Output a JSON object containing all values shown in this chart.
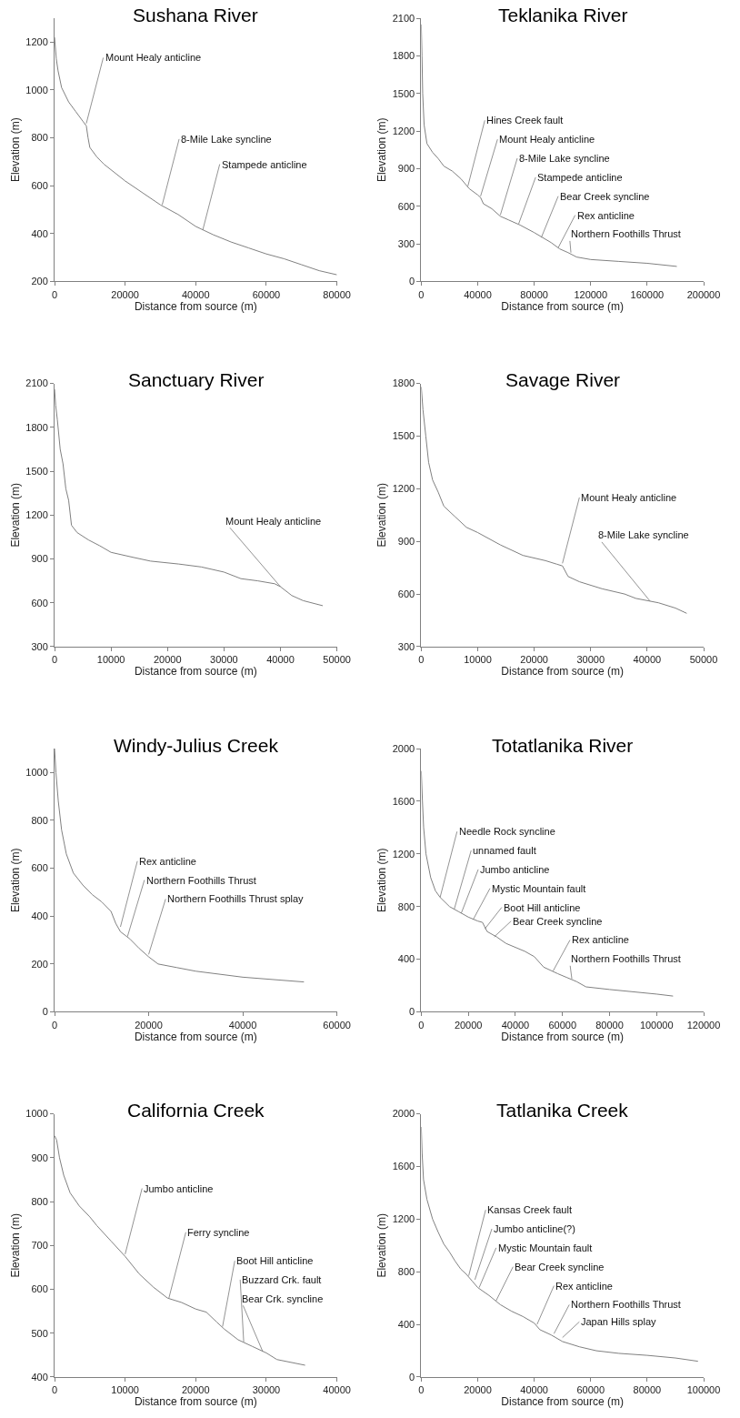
{
  "chart_data": [
    {
      "type": "line",
      "title": "Sushana River",
      "xlabel": "Distance from source (m)",
      "ylabel": "Elevation (m)",
      "xlim": [
        0,
        80000
      ],
      "xticks": [
        0,
        20000,
        40000,
        60000,
        80000
      ],
      "ylim": [
        200,
        1300
      ],
      "yticks": [
        200,
        400,
        600,
        800,
        1000,
        1200
      ],
      "marker": "none",
      "line_style": "solid",
      "x": [
        0,
        500,
        1000,
        2000,
        4000,
        6000,
        8000,
        9000,
        9500,
        10000,
        12000,
        14000,
        20000,
        25000,
        30000,
        35000,
        40000,
        45000,
        50000,
        55000,
        60000,
        65000,
        70000,
        75000,
        80000
      ],
      "series": [
        {
          "color": "#808080",
          "values": [
            1220,
            1130,
            1080,
            1010,
            950,
            910,
            870,
            850,
            800,
            760,
            720,
            690,
            620,
            570,
            520,
            480,
            430,
            395,
            365,
            340,
            315,
            295,
            270,
            245,
            228
          ]
        }
      ],
      "annotations": [
        {
          "text": "Mount Healy anticline",
          "x": 9000,
          "y": 860
        },
        {
          "text": "8-Mile Lake syncline",
          "x": 30500,
          "y": 520
        },
        {
          "text": "Stampede anticline",
          "x": 42000,
          "y": 415
        }
      ]
    },
    {
      "type": "line",
      "title": "Teklanika River",
      "xlabel": "Distance from source (m)",
      "ylabel": "Elevation (m)",
      "xlim": [
        0,
        200000
      ],
      "xticks": [
        0,
        40000,
        80000,
        120000,
        160000,
        200000
      ],
      "ylim": [
        0,
        2100
      ],
      "yticks": [
        0,
        300,
        600,
        900,
        1200,
        1500,
        1800,
        2100
      ],
      "marker": "none",
      "line_style": "solid",
      "x": [
        0,
        500,
        1000,
        2000,
        4000,
        8000,
        12000,
        16000,
        22000,
        28000,
        34000,
        40000,
        42000,
        44000,
        50000,
        56000,
        62000,
        70000,
        80000,
        86000,
        92000,
        98000,
        104000,
        110000,
        120000,
        140000,
        160000,
        181000
      ],
      "series": [
        {
          "color": "#808080",
          "values": [
            2050,
            1800,
            1500,
            1250,
            1100,
            1030,
            980,
            920,
            880,
            820,
            740,
            690,
            670,
            620,
            580,
            520,
            490,
            450,
            390,
            350,
            310,
            260,
            230,
            195,
            175,
            160,
            145,
            120
          ]
        }
      ],
      "annotations": [
        {
          "text": "Hines Creek fault",
          "x": 33000,
          "y": 760
        },
        {
          "text": "Mount Healy anticline",
          "x": 42000,
          "y": 680
        },
        {
          "text": "8-Mile Lake syncline",
          "x": 56000,
          "y": 530
        },
        {
          "text": "Stampede anticline",
          "x": 69000,
          "y": 460
        },
        {
          "text": "Bear Creek syncline",
          "x": 85000,
          "y": 350
        },
        {
          "text": "Rex anticline",
          "x": 97000,
          "y": 270
        },
        {
          "text": "Northern Foothills Thrust",
          "x": 106000,
          "y": 230
        }
      ]
    },
    {
      "type": "line",
      "title": "Sanctuary River",
      "xlabel": "Distance from source (m)",
      "ylabel": "Elevation (m)",
      "xlim": [
        0,
        50000
      ],
      "xticks": [
        0,
        10000,
        20000,
        30000,
        40000,
        50000
      ],
      "ylim": [
        300,
        2100
      ],
      "yticks": [
        300,
        600,
        900,
        1200,
        1500,
        1800,
        2100
      ],
      "marker": "none",
      "line_style": "solid",
      "x": [
        0,
        200,
        500,
        1000,
        1500,
        2000,
        2500,
        3000,
        4000,
        6000,
        8000,
        10000,
        14000,
        17000,
        22000,
        26000,
        30000,
        33000,
        36000,
        39000,
        40000,
        42000,
        44000,
        47500
      ],
      "series": [
        {
          "color": "#808080",
          "values": [
            2060,
            1950,
            1850,
            1650,
            1550,
            1380,
            1300,
            1130,
            1080,
            1030,
            990,
            945,
            910,
            885,
            865,
            845,
            810,
            765,
            750,
            730,
            710,
            650,
            615,
            580
          ]
        }
      ],
      "annotations": [
        {
          "text": "Mount Healy anticline",
          "x": 40000,
          "y": 710
        }
      ]
    },
    {
      "type": "line",
      "title": "Savage River",
      "xlabel": "Distance from source (m)",
      "ylabel": "Elevation (m)",
      "xlim": [
        0,
        50000
      ],
      "xticks": [
        0,
        10000,
        20000,
        30000,
        40000,
        50000
      ],
      "ylim": [
        300,
        1800
      ],
      "yticks": [
        300,
        600,
        900,
        1200,
        1500,
        1800
      ],
      "marker": "none",
      "line_style": "solid",
      "x": [
        0,
        300,
        800,
        1300,
        2000,
        3000,
        4000,
        6000,
        8000,
        10000,
        14000,
        18000,
        22000,
        24000,
        25000,
        26000,
        28000,
        32000,
        36000,
        38000,
        42000,
        45000,
        47000
      ],
      "series": [
        {
          "color": "#808080",
          "values": [
            1780,
            1650,
            1500,
            1350,
            1250,
            1180,
            1100,
            1040,
            980,
            950,
            880,
            820,
            790,
            770,
            760,
            700,
            670,
            630,
            600,
            575,
            550,
            520,
            490
          ]
        }
      ],
      "annotations": [
        {
          "text": "Mount Healy anticline",
          "x": 25000,
          "y": 775
        },
        {
          "text": "8-Mile Lake syncline",
          "x": 40500,
          "y": 560
        }
      ]
    },
    {
      "type": "line",
      "title": "Windy-Julius Creek",
      "xlabel": "Distance from source (m)",
      "ylabel": "Elevation (m)",
      "xlim": [
        0,
        60000
      ],
      "xticks": [
        0,
        20000,
        40000,
        60000
      ],
      "ylim": [
        0,
        1100
      ],
      "yticks": [
        0,
        200,
        400,
        600,
        800,
        1000
      ],
      "marker": "none",
      "line_style": "solid",
      "x": [
        0,
        300,
        800,
        1500,
        2500,
        4000,
        6000,
        8000,
        10000,
        12000,
        13000,
        14000,
        16000,
        18000,
        20000,
        22000,
        26000,
        30000,
        40000,
        53000
      ],
      "series": [
        {
          "color": "#808080",
          "values": [
            1100,
            1000,
            880,
            760,
            660,
            580,
            530,
            490,
            460,
            420,
            370,
            335,
            305,
            265,
            230,
            200,
            185,
            170,
            145,
            125
          ]
        }
      ],
      "annotations": [
        {
          "text": "Rex anticline",
          "x": 14000,
          "y": 355
        },
        {
          "text": "Northern Foothills Thrust",
          "x": 15500,
          "y": 315
        },
        {
          "text": "Northern Foothills Thrust splay",
          "x": 20000,
          "y": 240
        }
      ]
    },
    {
      "type": "line",
      "title": "Totatlanika River",
      "xlabel": "Distance from source (m)",
      "ylabel": "Elevation (m)",
      "xlim": [
        0,
        120000
      ],
      "xticks": [
        0,
        20000,
        40000,
        60000,
        80000,
        100000,
        120000
      ],
      "ylim": [
        0,
        2000
      ],
      "yticks": [
        0,
        400,
        800,
        1200,
        1600,
        2000
      ],
      "marker": "none",
      "line_style": "solid",
      "x": [
        0,
        500,
        1000,
        2000,
        4000,
        6000,
        8000,
        12000,
        16000,
        20000,
        24000,
        26000,
        28000,
        32000,
        36000,
        44000,
        48000,
        52000,
        58000,
        62000,
        66000,
        70000,
        80000,
        100000,
        107000
      ],
      "series": [
        {
          "color": "#808080",
          "values": [
            1830,
            1600,
            1400,
            1200,
            1020,
            920,
            870,
            800,
            760,
            720,
            690,
            680,
            610,
            570,
            520,
            460,
            420,
            340,
            290,
            260,
            230,
            190,
            170,
            135,
            120
          ]
        }
      ],
      "annotations": [
        {
          "text": "Needle Rock syncline",
          "x": 8000,
          "y": 870
        },
        {
          "text": "unnamed fault",
          "x": 14000,
          "y": 780
        },
        {
          "text": "Jumbo anticline",
          "x": 17000,
          "y": 750
        },
        {
          "text": "Mystic Mountain fault",
          "x": 22000,
          "y": 700
        },
        {
          "text": "Boot Hill anticline",
          "x": 27000,
          "y": 630
        },
        {
          "text": "Bear Creek syncline",
          "x": 31000,
          "y": 570
        },
        {
          "text": "Rex anticline",
          "x": 56000,
          "y": 310
        },
        {
          "text": "Northern Foothills Thrust",
          "x": 64000,
          "y": 250
        }
      ]
    },
    {
      "type": "line",
      "title": "California Creek",
      "xlabel": "Distance from source (m)",
      "ylabel": "Elevation (m)",
      "xlim": [
        0,
        40000
      ],
      "xticks": [
        0,
        10000,
        20000,
        30000,
        40000
      ],
      "ylim": [
        400,
        1000
      ],
      "yticks": [
        400,
        500,
        600,
        700,
        800,
        900,
        1000
      ],
      "marker": "none",
      "line_style": "solid",
      "x": [
        0,
        300,
        700,
        1300,
        2200,
        3500,
        5000,
        6000,
        8000,
        10000,
        12000,
        14000,
        16000,
        18000,
        20000,
        21500,
        23000,
        24000,
        26000,
        28000,
        30000,
        31500,
        35500
      ],
      "series": [
        {
          "color": "#808080",
          "values": [
            950,
            940,
            900,
            860,
            820,
            790,
            765,
            745,
            710,
            675,
            635,
            605,
            580,
            570,
            555,
            548,
            525,
            510,
            485,
            470,
            455,
            440,
            427
          ]
        }
      ],
      "annotations": [
        {
          "text": "Jumbo anticline",
          "x": 10000,
          "y": 680
        },
        {
          "text": "Ferry syncline",
          "x": 16200,
          "y": 580
        },
        {
          "text": "Boot Hill anticline",
          "x": 23800,
          "y": 515
        },
        {
          "text": "Buzzard Crk. fault",
          "x": 26800,
          "y": 480
        },
        {
          "text": "Bear Crk. syncline",
          "x": 29500,
          "y": 458
        }
      ]
    },
    {
      "type": "line",
      "title": "Tatlanika Creek",
      "xlabel": "Distance from source (m)",
      "ylabel": "Elevation (m)",
      "xlim": [
        0,
        100000
      ],
      "xticks": [
        0,
        20000,
        40000,
        60000,
        80000,
        100000
      ],
      "ylim": [
        0,
        2000
      ],
      "yticks": [
        0,
        400,
        800,
        1200,
        1600,
        2000
      ],
      "marker": "none",
      "line_style": "solid",
      "x": [
        0,
        300,
        800,
        2000,
        4000,
        6000,
        8000,
        10000,
        12000,
        14000,
        16000,
        18000,
        20000,
        24000,
        28000,
        32000,
        36000,
        40000,
        42000,
        46000,
        50000,
        56000,
        62000,
        70000,
        80000,
        90000,
        98000
      ],
      "series": [
        {
          "color": "#808080",
          "values": [
            1900,
            1700,
            1500,
            1350,
            1200,
            1100,
            1010,
            950,
            880,
            820,
            780,
            730,
            680,
            620,
            550,
            500,
            460,
            410,
            360,
            320,
            270,
            230,
            200,
            180,
            165,
            145,
            120
          ]
        }
      ],
      "annotations": [
        {
          "text": "Kansas Creek fault",
          "x": 16800,
          "y": 770
        },
        {
          "text": "Jumbo anticline(?)",
          "x": 19000,
          "y": 740
        },
        {
          "text": "Mystic Mountain fault",
          "x": 20500,
          "y": 680
        },
        {
          "text": "Bear Creek syncline",
          "x": 26500,
          "y": 580
        },
        {
          "text": "Rex anticline",
          "x": 41000,
          "y": 400
        },
        {
          "text": "Northern Foothills Thrust",
          "x": 47000,
          "y": 330
        },
        {
          "text": "Japan Hills splay",
          "x": 50000,
          "y": 300
        }
      ]
    }
  ]
}
